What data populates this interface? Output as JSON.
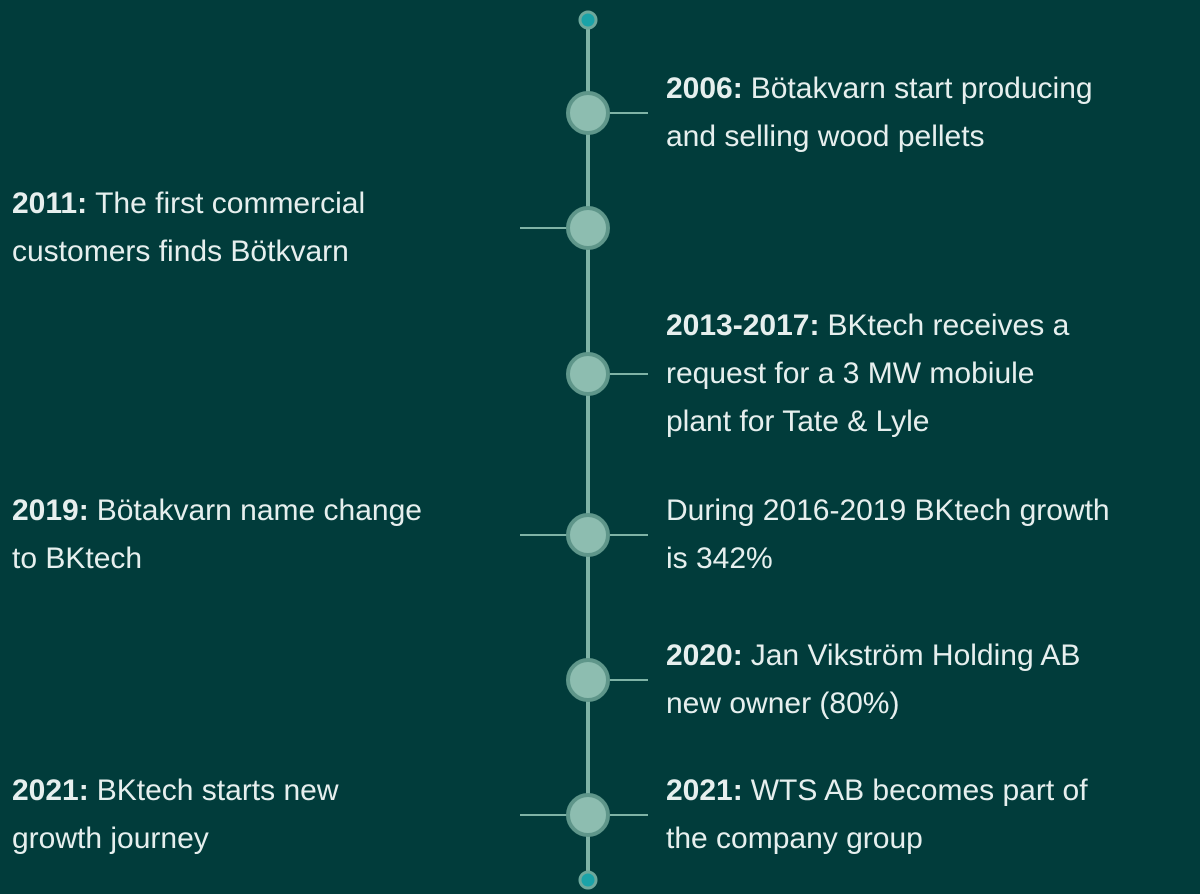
{
  "nodes": [
    {
      "right": {
        "year": "2006:",
        "text": [
          "Bötakvarn start producing",
          "and selling wood pellets"
        ]
      }
    },
    {
      "left": {
        "year": "2011:",
        "text": [
          "The first commercial",
          "customers finds Bötkvarn"
        ]
      }
    },
    {
      "right": {
        "year": "2013-2017:",
        "text": [
          "BKtech receives a",
          "request for a 3 MW mobiule",
          "plant for Tate & Lyle"
        ]
      }
    },
    {
      "left": {
        "year": "2019:",
        "text": [
          "Bötakvarn name change",
          "to BKtech"
        ]
      },
      "right": {
        "text": [
          "During 2016-2019 BKtech growth",
          "is 342%"
        ]
      }
    },
    {
      "right": {
        "year": "2020:",
        "text": [
          "Jan Vikström Holding AB",
          "new owner (80%)"
        ]
      }
    },
    {
      "left": {
        "year": "2021:",
        "text": [
          "BKtech starts new",
          "growth journey"
        ]
      },
      "right": {
        "year": "2021:",
        "text": [
          "WTS AB becomes part of",
          "the company group"
        ]
      }
    }
  ]
}
